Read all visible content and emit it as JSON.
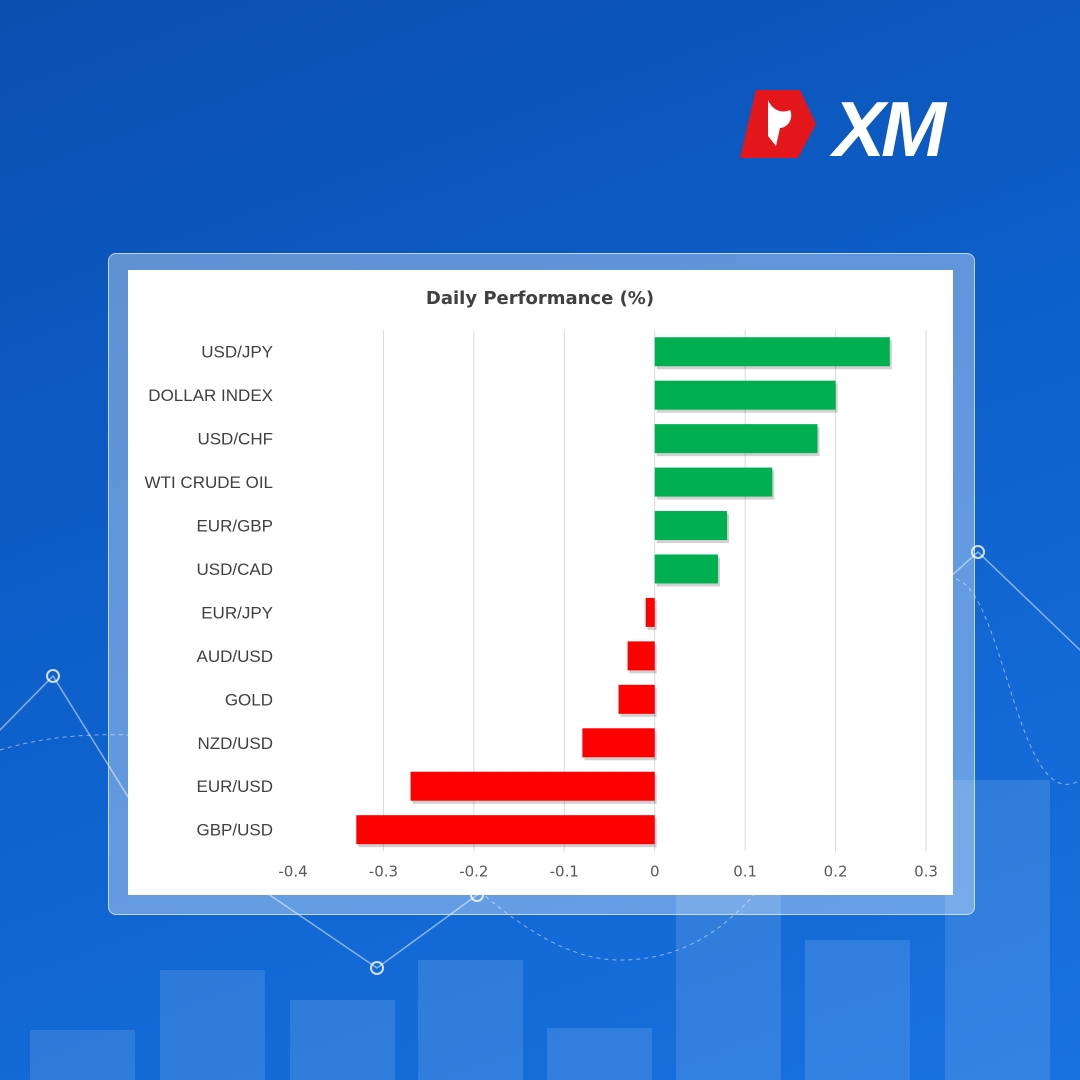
{
  "brand": {
    "logo_text": "XM",
    "accent": "#e3161b"
  },
  "chart_data": {
    "type": "bar",
    "orientation": "horizontal",
    "title": "Daily Performance (%)",
    "categories": [
      "USD/JPY",
      "DOLLAR INDEX",
      "USD/CHF",
      "WTI CRUDE OIL",
      "EUR/GBP",
      "USD/CAD",
      "EUR/JPY",
      "AUD/USD",
      "GOLD",
      "NZD/USD",
      "EUR/USD",
      "GBP/USD"
    ],
    "values": [
      0.26,
      0.2,
      0.18,
      0.13,
      0.08,
      0.07,
      -0.01,
      -0.03,
      -0.04,
      -0.08,
      -0.27,
      -0.33
    ],
    "xlim": [
      -0.4,
      0.3
    ],
    "xticks": [
      "-0.4",
      "-0.3",
      "-0.2",
      "-0.1",
      "0",
      "0.1",
      "0.2",
      "0.3"
    ],
    "grid": "vertical",
    "colors": {
      "positive": "#00b050",
      "negative": "#ff0000"
    }
  }
}
